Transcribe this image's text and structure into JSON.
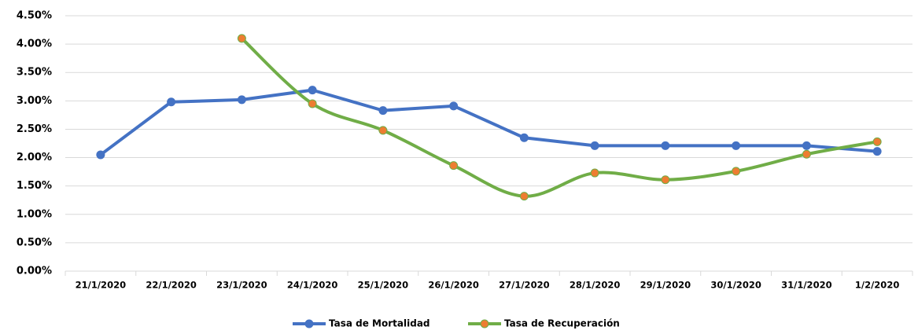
{
  "chart_data": {
    "type": "line",
    "categories": [
      "21/1/2020",
      "22/1/2020",
      "23/1/2020",
      "24/1/2020",
      "25/1/2020",
      "26/1/2020",
      "27/1/2020",
      "28/1/2020",
      "29/1/2020",
      "30/1/2020",
      "31/1/2020",
      "1/2/2020"
    ],
    "series": [
      {
        "name": "Tasa de Mortalidad",
        "color": "#4472c4",
        "marker_color": "#4472c4",
        "smooth": false,
        "values": [
          2.05,
          2.98,
          3.02,
          3.19,
          2.83,
          2.91,
          2.35,
          2.21,
          2.21,
          2.21,
          2.21,
          2.11
        ]
      },
      {
        "name": "Tasa de Recuperación",
        "color": "#70ad47",
        "marker_color": "#ed7d31",
        "smooth": true,
        "values": [
          null,
          null,
          4.1,
          2.95,
          2.48,
          1.86,
          1.32,
          1.73,
          1.61,
          1.76,
          2.06,
          2.28
        ]
      }
    ],
    "ylim": [
      0,
      4.5
    ],
    "yticks": [
      {
        "value": 0,
        "label": "0.00%"
      },
      {
        "value": 0.5,
        "label": "0.50%"
      },
      {
        "value": 1,
        "label": "1.00%"
      },
      {
        "value": 1.5,
        "label": "1.50%"
      },
      {
        "value": 2,
        "label": "2.00%"
      },
      {
        "value": 2.5,
        "label": "2.50%"
      },
      {
        "value": 3,
        "label": "3.00%"
      },
      {
        "value": 3.5,
        "label": "3.50%"
      },
      {
        "value": 4,
        "label": "4.00%"
      },
      {
        "value": 4.5,
        "label": "4.50%"
      }
    ],
    "grid": true,
    "legend": "bottom"
  }
}
